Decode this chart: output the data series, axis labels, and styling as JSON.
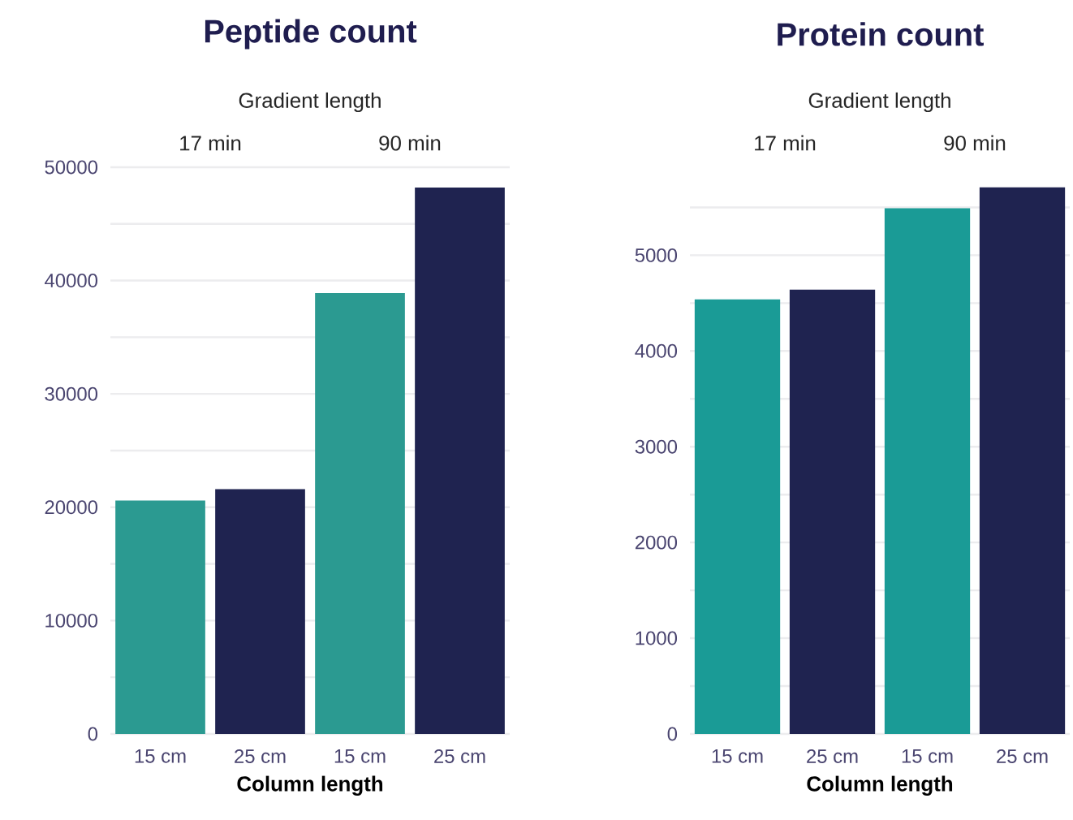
{
  "chart_data": [
    {
      "type": "bar",
      "title": "Peptide count",
      "xlabel": "Column length",
      "categories": [
        "15 cm",
        "25 cm",
        "15 cm",
        "25 cm"
      ],
      "values": [
        20600,
        21600,
        38900,
        48200
      ],
      "colors": [
        "#2b9a91",
        "#1f2350",
        "#2b9a91",
        "#1f2350"
      ],
      "annotations": [
        "Gradient length",
        "17 min",
        "90 min"
      ],
      "ylim": [
        0,
        50000
      ],
      "yticks": [
        0,
        {
          "value": 5000,
          "label": null
        },
        10000,
        {
          "value": 15000,
          "label": null
        },
        20000,
        {
          "value": 25000,
          "label": null
        },
        30000,
        {
          "value": 35000,
          "label": null
        },
        40000,
        {
          "value": 45000,
          "label": null
        },
        50000
      ],
      "grid": "y"
    },
    {
      "type": "bar",
      "title": "Protein count",
      "xlabel": "Column length",
      "categories": [
        "15 cm",
        "25 cm",
        "15 cm",
        "25 cm"
      ],
      "values": [
        4540,
        4640,
        5490,
        5710
      ],
      "colors": [
        "#1a9b96",
        "#1f2350",
        "#1a9b96",
        "#1f2350"
      ],
      "annotations": [
        "Gradient length",
        "17 min",
        "90 min"
      ],
      "ylim": [
        0,
        5750
      ],
      "yticks": [
        0,
        {
          "value": 500,
          "label": null
        },
        1000,
        {
          "value": 1500,
          "label": null
        },
        2000,
        {
          "value": 2500,
          "label": null
        },
        3000,
        {
          "value": 3500,
          "label": null
        },
        4000,
        {
          "value": 4500,
          "label": null
        },
        5000,
        {
          "value": 5500,
          "label": null
        }
      ],
      "grid": "y"
    }
  ]
}
